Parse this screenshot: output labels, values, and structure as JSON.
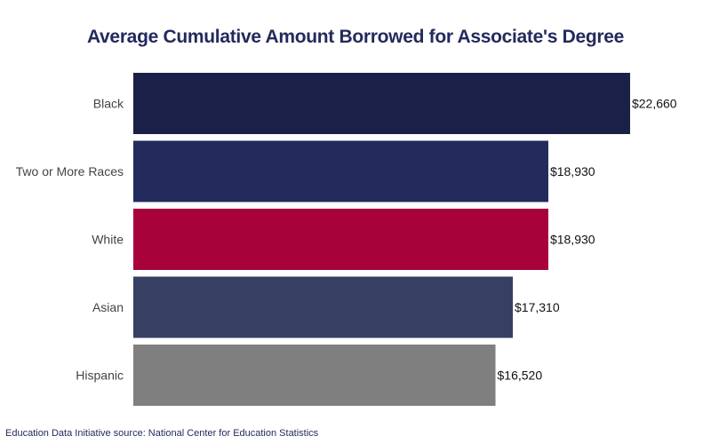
{
  "chart_data": {
    "type": "bar",
    "orientation": "horizontal",
    "title": "Average Cumulative Amount Borrowed for Associate's Degree",
    "categories": [
      "Black",
      "Two or More Races",
      "White",
      "Asian",
      "Hispanic"
    ],
    "values": [
      22660,
      18930,
      18930,
      17310,
      16520
    ],
    "data_labels": [
      "$22,660",
      "$18,930",
      "$18,930",
      "$17,310",
      "$16,520"
    ],
    "colors": [
      "#1a2047",
      "#232b5c",
      "#a8023b",
      "#373f63",
      "#7f7f7f"
    ],
    "xlabel": "",
    "ylabel": "",
    "xlim": [
      0,
      26350
    ],
    "grid": false,
    "legend": "none"
  },
  "footer": "Education Data Initiative source: National Center for Education Statistics"
}
